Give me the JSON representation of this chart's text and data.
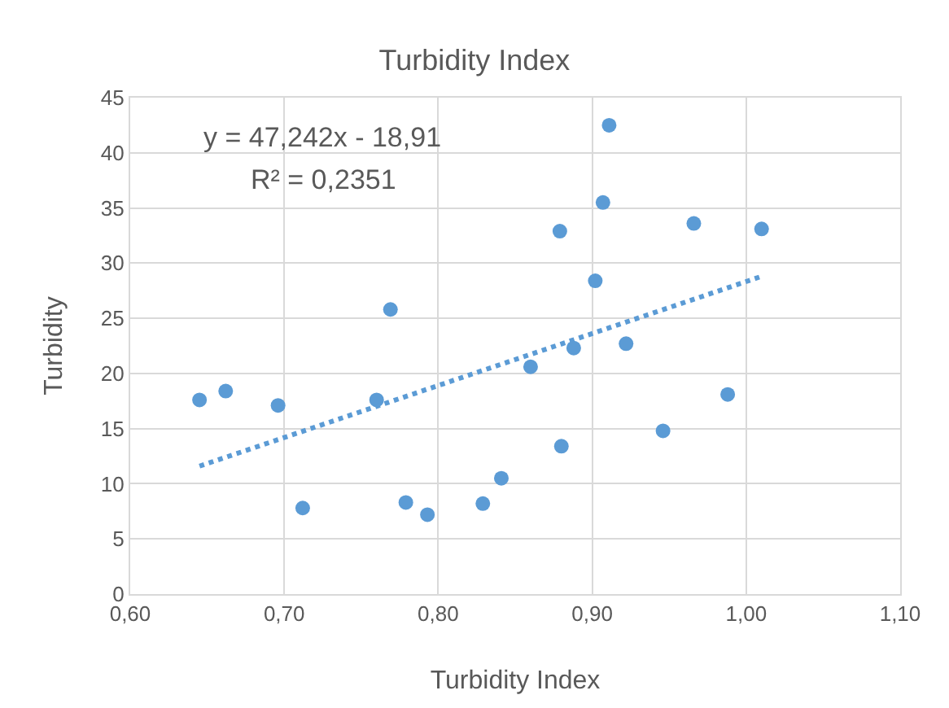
{
  "chart_data": {
    "type": "scatter",
    "title": "Turbidity Index",
    "xlabel": "Turbidity Index",
    "ylabel": "Turbidity",
    "xlim": [
      0.6,
      1.1
    ],
    "xticks": [
      {
        "value": 0.6,
        "label": "0,60"
      },
      {
        "value": 0.7,
        "label": "0,70"
      },
      {
        "value": 0.8,
        "label": "0,80"
      },
      {
        "value": 0.9,
        "label": "0,90"
      },
      {
        "value": 1.0,
        "label": "1,00"
      },
      {
        "value": 1.1,
        "label": "1,10"
      }
    ],
    "ylim": [
      0,
      45
    ],
    "yticks": [
      0,
      5,
      10,
      15,
      20,
      25,
      30,
      35,
      40,
      45
    ],
    "grid": true,
    "series": [
      {
        "marker": "circle",
        "color": "#5b9bd5",
        "x": [
          0.645,
          0.662,
          0.696,
          0.712,
          0.76,
          0.769,
          0.779,
          0.793,
          0.829,
          0.841,
          0.911,
          0.907,
          0.879,
          0.966,
          1.01,
          0.902,
          0.922,
          0.888,
          0.86,
          0.988,
          0.946,
          0.88
        ],
        "values": [
          17.6,
          18.4,
          17.1,
          7.8,
          17.6,
          25.8,
          8.3,
          7.2,
          8.2,
          10.5,
          42.5,
          35.5,
          32.9,
          33.6,
          33.1,
          28.4,
          22.7,
          22.3,
          20.6,
          18.1,
          14.8,
          13.4
        ]
      },
      {
        "type": "line",
        "color": "#5b9bd5",
        "line_style": "dotted",
        "x": [
          0.645,
          1.01
        ],
        "values": [
          11.6,
          28.8
        ]
      }
    ],
    "annotations": [
      "y = 47,242x - 18,91",
      "R² = 0,2351"
    ]
  }
}
